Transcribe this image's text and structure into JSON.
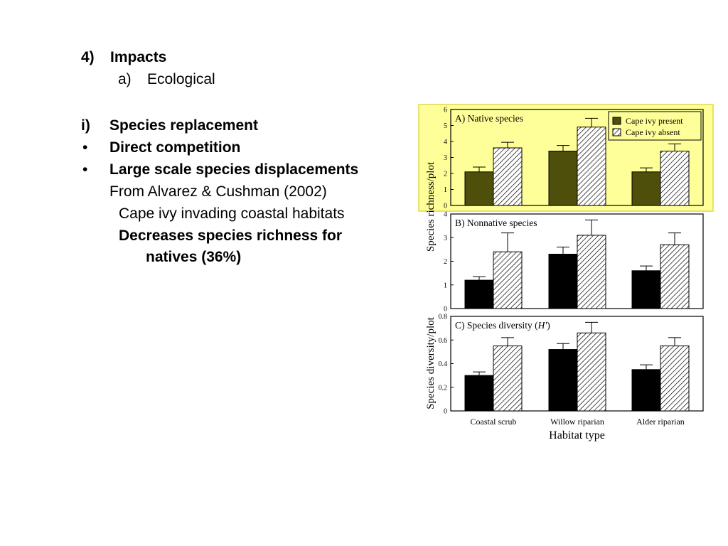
{
  "slide": {
    "heading_num": "4)",
    "heading": "Impacts",
    "sub_num": "a)",
    "sub": "Ecological",
    "item_i_num": "i)",
    "item_i": "Species replacement",
    "bullet_char": "•",
    "bullet1": "Direct competition",
    "bullet2": "Large scale species displacements",
    "source": "From Alvarez & Cushman (2002)",
    "note1": "Cape ivy invading coastal habitats",
    "note2a": "Decreases species richness for",
    "note2b": "natives (36%)"
  },
  "colors": {
    "highlight": "#ffff99",
    "highlight_border": "#e0d84a",
    "native_present": "#4f4f0c",
    "other_present": "#000000"
  },
  "chart_data": [
    {
      "type": "bar",
      "title": "A) Native species",
      "categories": [
        "Coastal scrub",
        "Willow riparian",
        "Alder riparian"
      ],
      "series": [
        {
          "name": "Cape ivy present",
          "values": [
            2.1,
            3.4,
            2.1
          ],
          "errors": [
            0.3,
            0.35,
            0.25
          ]
        },
        {
          "name": "Cape ivy absent",
          "values": [
            3.6,
            4.9,
            3.4
          ],
          "errors": [
            0.35,
            0.55,
            0.45
          ]
        }
      ],
      "ylabel": "Species richness/plot",
      "ylim": [
        0,
        6
      ],
      "yticks": [
        "0",
        "1",
        "2",
        "3",
        "4",
        "5",
        "6"
      ],
      "legend": "top-right",
      "highlighted": true
    },
    {
      "type": "bar",
      "title": "B) Nonnative species",
      "categories": [
        "Coastal scrub",
        "Willow riparian",
        "Alder riparian"
      ],
      "series": [
        {
          "name": "Cape ivy present",
          "values": [
            1.2,
            2.3,
            1.6
          ],
          "errors": [
            0.15,
            0.3,
            0.2
          ]
        },
        {
          "name": "Cape ivy absent",
          "values": [
            2.4,
            3.1,
            2.7
          ],
          "errors": [
            0.8,
            0.65,
            0.5
          ]
        }
      ],
      "ylim": [
        0,
        4
      ],
      "yticks": [
        "0",
        "1",
        "2",
        "3",
        "4"
      ]
    },
    {
      "type": "bar",
      "title": "C) Species diversity (",
      "title_italic": "H'",
      "title_end": ")",
      "categories": [
        "Coastal scrub",
        "Willow riparian",
        "Alder riparian"
      ],
      "series": [
        {
          "name": "Cape ivy present",
          "values": [
            0.3,
            0.52,
            0.35
          ],
          "errors": [
            0.03,
            0.05,
            0.04
          ]
        },
        {
          "name": "Cape ivy absent",
          "values": [
            0.55,
            0.66,
            0.55
          ],
          "errors": [
            0.07,
            0.09,
            0.07
          ]
        }
      ],
      "ylabel": "Species diversity/plot",
      "ylim": [
        0,
        0.8
      ],
      "yticks": [
        "0",
        "0.2",
        "0.4",
        "0.6",
        "0.8"
      ],
      "xlabel": "Habitat type"
    }
  ]
}
